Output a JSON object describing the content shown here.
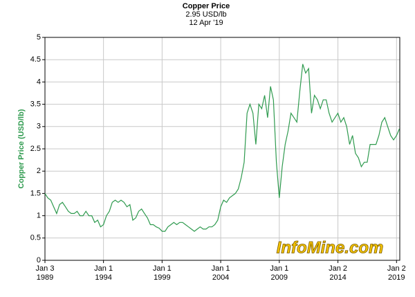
{
  "chart_data": {
    "type": "line",
    "title": "Copper Price",
    "subtitle": "2.95 USD/lb",
    "date_label": "12 Apr '19",
    "y_label": "Copper Price (USD/lb)",
    "watermark": "InfoMine.com",
    "x": [
      "1989-01",
      "1989-04",
      "1989-07",
      "1989-10",
      "1990-01",
      "1990-04",
      "1990-07",
      "1990-10",
      "1991-01",
      "1991-04",
      "1991-07",
      "1991-10",
      "1992-01",
      "1992-04",
      "1992-07",
      "1992-10",
      "1993-01",
      "1993-04",
      "1993-07",
      "1993-10",
      "1994-01",
      "1994-04",
      "1994-07",
      "1994-10",
      "1995-01",
      "1995-04",
      "1995-07",
      "1995-10",
      "1996-01",
      "1996-04",
      "1996-07",
      "1996-10",
      "1997-01",
      "1997-04",
      "1997-07",
      "1997-10",
      "1998-01",
      "1998-04",
      "1998-07",
      "1998-10",
      "1999-01",
      "1999-04",
      "1999-07",
      "1999-10",
      "2000-01",
      "2000-04",
      "2000-07",
      "2000-10",
      "2001-01",
      "2001-04",
      "2001-07",
      "2001-10",
      "2002-01",
      "2002-04",
      "2002-07",
      "2002-10",
      "2003-01",
      "2003-04",
      "2003-07",
      "2003-10",
      "2004-01",
      "2004-04",
      "2004-07",
      "2004-10",
      "2005-01",
      "2005-04",
      "2005-07",
      "2005-10",
      "2006-01",
      "2006-04",
      "2006-07",
      "2006-10",
      "2007-01",
      "2007-04",
      "2007-07",
      "2007-10",
      "2008-01",
      "2008-04",
      "2008-07",
      "2008-10",
      "2009-01",
      "2009-04",
      "2009-07",
      "2009-10",
      "2010-01",
      "2010-04",
      "2010-07",
      "2010-10",
      "2011-01",
      "2011-04",
      "2011-07",
      "2011-10",
      "2012-01",
      "2012-04",
      "2012-07",
      "2012-10",
      "2013-01",
      "2013-04",
      "2013-07",
      "2013-10",
      "2014-01",
      "2014-04",
      "2014-07",
      "2014-10",
      "2015-01",
      "2015-04",
      "2015-07",
      "2015-10",
      "2016-01",
      "2016-04",
      "2016-07",
      "2016-10",
      "2017-01",
      "2017-04",
      "2017-07",
      "2017-10",
      "2018-01",
      "2018-04",
      "2018-07",
      "2018-10",
      "2019-01",
      "2019-04"
    ],
    "series": [
      {
        "name": "Copper Price",
        "color": "#2e9a4e",
        "values": [
          1.5,
          1.4,
          1.35,
          1.2,
          1.05,
          1.25,
          1.3,
          1.2,
          1.1,
          1.05,
          1.05,
          1.1,
          1.0,
          1.0,
          1.1,
          1.0,
          1.0,
          0.85,
          0.9,
          0.75,
          0.8,
          1.0,
          1.1,
          1.3,
          1.35,
          1.3,
          1.35,
          1.3,
          1.2,
          1.25,
          0.9,
          0.95,
          1.1,
          1.15,
          1.05,
          0.95,
          0.8,
          0.8,
          0.75,
          0.72,
          0.65,
          0.65,
          0.75,
          0.8,
          0.85,
          0.8,
          0.85,
          0.85,
          0.8,
          0.75,
          0.7,
          0.65,
          0.7,
          0.75,
          0.7,
          0.7,
          0.75,
          0.75,
          0.8,
          0.9,
          1.2,
          1.35,
          1.3,
          1.4,
          1.45,
          1.5,
          1.6,
          1.85,
          2.2,
          3.3,
          3.5,
          3.3,
          2.6,
          3.5,
          3.4,
          3.7,
          3.2,
          3.9,
          3.6,
          2.2,
          1.4,
          2.1,
          2.6,
          2.9,
          3.3,
          3.2,
          3.1,
          3.8,
          4.4,
          4.2,
          4.3,
          3.3,
          3.7,
          3.6,
          3.4,
          3.6,
          3.6,
          3.3,
          3.1,
          3.2,
          3.3,
          3.1,
          3.2,
          3.0,
          2.6,
          2.8,
          2.4,
          2.3,
          2.1,
          2.2,
          2.2,
          2.6,
          2.6,
          2.6,
          2.8,
          3.1,
          3.2,
          3.0,
          2.8,
          2.7,
          2.8,
          2.95
        ]
      }
    ],
    "xlim": [
      "1989-01-03",
      "2019-04-12"
    ],
    "xticks": [
      {
        "value": "1989-01-03",
        "label": "Jan 3\n1989"
      },
      {
        "value": "1994-01-01",
        "label": "Jan 1\n1994"
      },
      {
        "value": "1999-01-01",
        "label": "Jan 1\n1999"
      },
      {
        "value": "2004-01-01",
        "label": "Jan 1\n2004"
      },
      {
        "value": "2009-01-01",
        "label": "Jan 1\n2009"
      },
      {
        "value": "2014-01-02",
        "label": "Jan 2\n2014"
      },
      {
        "value": "2019-01-02",
        "label": "Jan 2\n2019"
      }
    ],
    "ylim": [
      0,
      5
    ],
    "yticks": [
      0,
      0.5,
      1,
      1.5,
      2,
      2.5,
      3,
      3.5,
      4,
      4.5,
      5
    ],
    "grid": true
  }
}
